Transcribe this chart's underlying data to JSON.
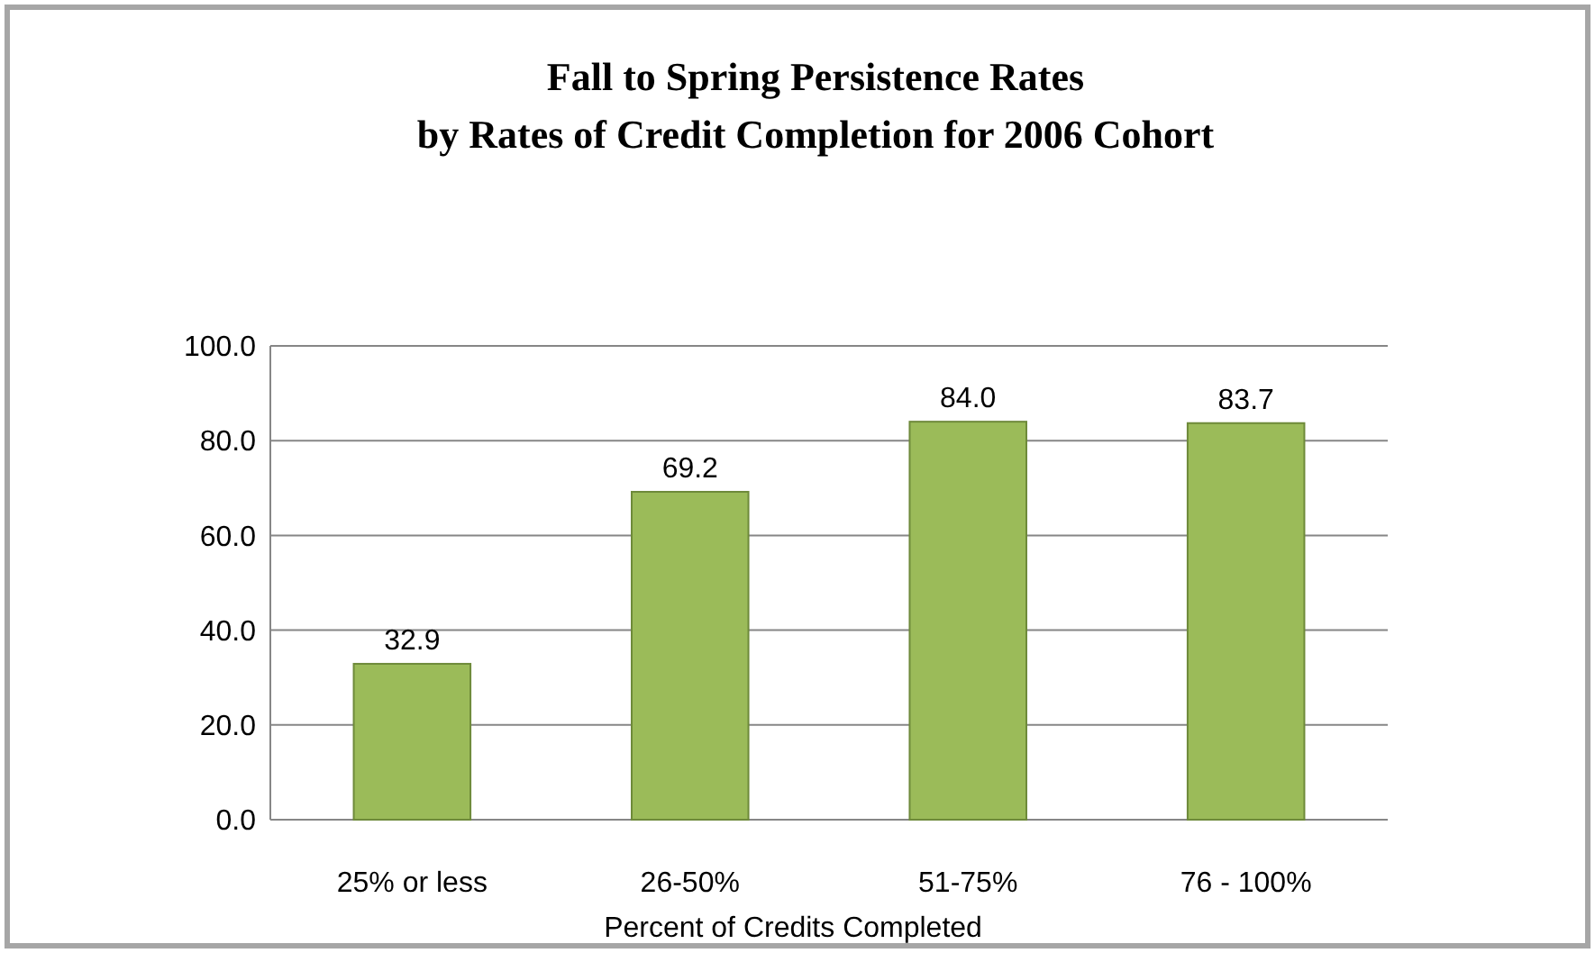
{
  "chart_data": {
    "type": "bar",
    "title": "Fall to Spring Persistence Rates\nby Rates of Credit Completion for 2006 Cohort",
    "xlabel": "Percent of Credits Completed",
    "categories": [
      "25% or less",
      "26-50%",
      "51-75%",
      "76 - 100%"
    ],
    "values": [
      32.9,
      69.2,
      84.0,
      83.7
    ],
    "value_labels": [
      "32.9",
      "69.2",
      "84.0",
      "83.7"
    ],
    "color": "#9bbb59",
    "ylim": [
      0,
      100
    ],
    "yticks": [
      {
        "value": 0,
        "label": "0.0"
      },
      {
        "value": 20,
        "label": "20.0"
      },
      {
        "value": 40,
        "label": "40.0"
      },
      {
        "value": 60,
        "label": "60.0"
      },
      {
        "value": 80,
        "label": "80.0"
      },
      {
        "value": 100,
        "label": "100.0"
      }
    ],
    "grid": "y"
  }
}
